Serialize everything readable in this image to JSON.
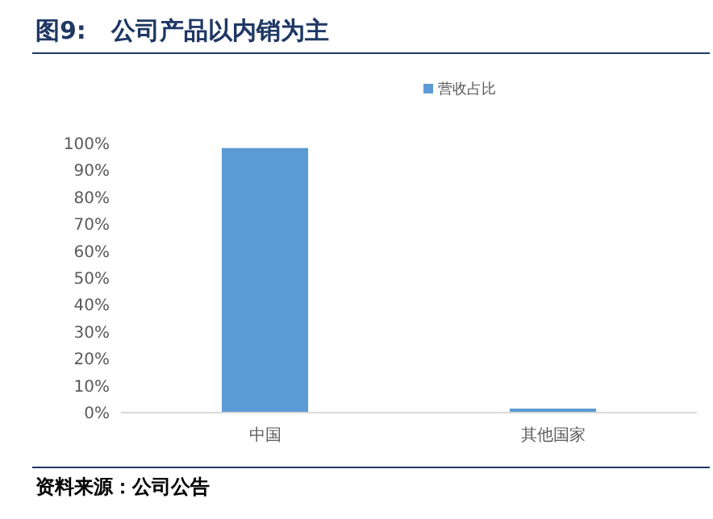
{
  "chart_data": {
    "type": "bar",
    "title": "图9:   公司产品以内销为主",
    "categories": [
      "中国",
      "其他国家"
    ],
    "series": [
      {
        "name": "营收占比",
        "color": "#5b9bd5",
        "values": [
          98.3,
          1.5
        ]
      }
    ],
    "ylim": [
      0,
      100
    ],
    "yticks": [
      {
        "value": 0,
        "label": "0%"
      },
      {
        "value": 10,
        "label": "10%"
      },
      {
        "value": 20,
        "label": "20%"
      },
      {
        "value": 30,
        "label": "30%"
      },
      {
        "value": 40,
        "label": "40%"
      },
      {
        "value": 50,
        "label": "50%"
      },
      {
        "value": 60,
        "label": "60%"
      },
      {
        "value": 70,
        "label": "70%"
      },
      {
        "value": 80,
        "label": "80%"
      },
      {
        "value": 90,
        "label": "90%"
      },
      {
        "value": 100,
        "label": "100%"
      }
    ],
    "legend": "top",
    "annotations": [
      "资料来源：公司公告"
    ]
  }
}
